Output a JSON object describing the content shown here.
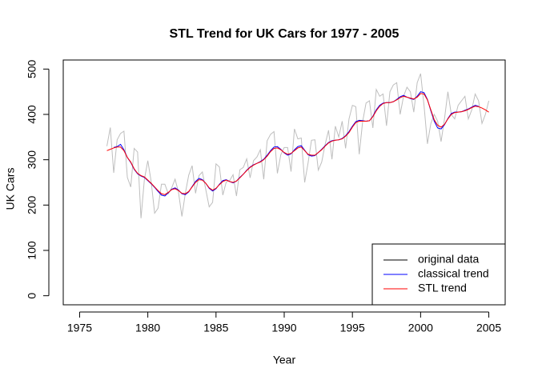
{
  "chart_data": {
    "type": "line",
    "title": "STL Trend for UK Cars for 1977 - 2005",
    "x_label": "Year",
    "y_label": "UK Cars",
    "xlim": [
      1973.8,
      2006.2
    ],
    "ylim": [
      -20,
      520
    ],
    "xticks": [
      1975,
      1980,
      1985,
      1990,
      1995,
      2000,
      2005
    ],
    "yticks": [
      0,
      100,
      200,
      300,
      400,
      500
    ],
    "legend_position": "bottomright",
    "grid": false,
    "x": [
      1977,
      1977.25,
      1977.5,
      1977.75,
      1978,
      1978.25,
      1978.5,
      1978.75,
      1979,
      1979.25,
      1979.5,
      1979.75,
      1980,
      1980.25,
      1980.5,
      1980.75,
      1981,
      1981.25,
      1981.5,
      1981.75,
      1982,
      1982.25,
      1982.5,
      1982.75,
      1983,
      1983.25,
      1983.5,
      1983.75,
      1984,
      1984.25,
      1984.5,
      1984.75,
      1985,
      1985.25,
      1985.5,
      1985.75,
      1986,
      1986.25,
      1986.5,
      1986.75,
      1987,
      1987.25,
      1987.5,
      1987.75,
      1988,
      1988.25,
      1988.5,
      1988.75,
      1989,
      1989.25,
      1989.5,
      1989.75,
      1990,
      1990.25,
      1990.5,
      1990.75,
      1991,
      1991.25,
      1991.5,
      1991.75,
      1992,
      1992.25,
      1992.5,
      1992.75,
      1993,
      1993.25,
      1993.5,
      1993.75,
      1994,
      1994.25,
      1994.5,
      1994.75,
      1995,
      1995.25,
      1995.5,
      1995.75,
      1996,
      1996.25,
      1996.5,
      1996.75,
      1997,
      1997.25,
      1997.5,
      1997.75,
      1998,
      1998.25,
      1998.5,
      1998.75,
      1999,
      1999.25,
      1999.5,
      1999.75,
      2000,
      2000.25,
      2000.5,
      2000.75,
      2001,
      2001.25,
      2001.5,
      2001.75,
      2002,
      2002.25,
      2002.5,
      2002.75,
      2003,
      2003.25,
      2003.5,
      2003.75,
      2004,
      2004.25,
      2004.5,
      2004.75,
      2005
    ],
    "series": [
      {
        "name": "original data",
        "color": "#bebebe",
        "legend_color": "#000000",
        "values": [
          330,
          371,
          271,
          344,
          358,
          363,
          261,
          240,
          325,
          317,
          171,
          257,
          298,
          251,
          182,
          193,
          246,
          246,
          225,
          238,
          257,
          228,
          175,
          226,
          266,
          287,
          226,
          265,
          273,
          234,
          196,
          206,
          291,
          284,
          222,
          251,
          254,
          267,
          220,
          278,
          283,
          302,
          260,
          298,
          306,
          322,
          257,
          342,
          356,
          362,
          270,
          311,
          327,
          327,
          274,
          368,
          346,
          348,
          250,
          293,
          343,
          344,
          277,
          295,
          334,
          365,
          301,
          374,
          350,
          385,
          325,
          390,
          420,
          417,
          312,
          384,
          425,
          430,
          370,
          455,
          440,
          445,
          375,
          450,
          465,
          470,
          400,
          440,
          460,
          450,
          405,
          470,
          490,
          420,
          335,
          380,
          400,
          385,
          340,
          390,
          450,
          400,
          390,
          420,
          430,
          440,
          390,
          410,
          445,
          430,
          380,
          400,
          430
        ]
      },
      {
        "name": "classical trend",
        "color": "#0000ff",
        "values": [
          null,
          null,
          327,
          329,
          334,
          322,
          305,
          294,
          279,
          269,
          264,
          261,
          254,
          247,
          239,
          230,
          222,
          220,
          227,
          235,
          238,
          233,
          225,
          223,
          229,
          241,
          252,
          259,
          256,
          248,
          237,
          231,
          236,
          246,
          254,
          256,
          252,
          249,
          253,
          261,
          268,
          277,
          284,
          289,
          292,
          296,
          301,
          310,
          320,
          328,
          329,
          323,
          315,
          310,
          313,
          322,
          329,
          331,
          321,
          311,
          308,
          309,
          316,
          323,
          331,
          338,
          342,
          343,
          344,
          347,
          353,
          362,
          374,
          384,
          387,
          386,
          385,
          386,
          396,
          410,
          420,
          425,
          426,
          426,
          428,
          433,
          439,
          442,
          438,
          435,
          433,
          440,
          450,
          448,
          433,
          408,
          385,
          370,
          368,
          377,
          391,
          402,
          405,
          405,
          406,
          409,
          412,
          416,
          420,
          418,
          null,
          null,
          null
        ]
      },
      {
        "name": "STL trend",
        "color": "#ff0000",
        "values": [
          320,
          323,
          326,
          328,
          328,
          320,
          305,
          295,
          280,
          270,
          265,
          262,
          255,
          248,
          240,
          232,
          225,
          223,
          228,
          234,
          236,
          232,
          226,
          225,
          230,
          240,
          250,
          256,
          255,
          248,
          238,
          233,
          237,
          245,
          252,
          255,
          252,
          250,
          253,
          260,
          268,
          276,
          283,
          288,
          292,
          295,
          300,
          308,
          318,
          325,
          326,
          322,
          316,
          312,
          314,
          320,
          326,
          328,
          320,
          312,
          310,
          310,
          316,
          322,
          330,
          337,
          341,
          343,
          344,
          346,
          352,
          360,
          372,
          382,
          385,
          385,
          385,
          386,
          395,
          408,
          418,
          424,
          426,
          426,
          428,
          432,
          437,
          440,
          438,
          436,
          434,
          438,
          446,
          445,
          432,
          410,
          388,
          376,
          372,
          378,
          390,
          400,
          404,
          405,
          406,
          408,
          411,
          415,
          418,
          417,
          414,
          410,
          405
        ]
      }
    ]
  }
}
